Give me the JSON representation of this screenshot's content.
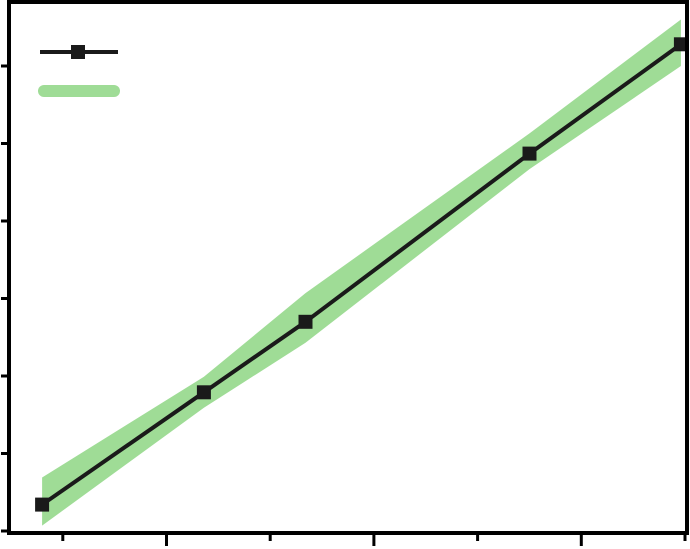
{
  "chart_data": {
    "type": "line",
    "title": "",
    "xlabel": "",
    "ylabel": "",
    "xlim": [
      0,
      6.5
    ],
    "ylim": [
      0,
      6.8
    ],
    "x_ticks": [
      0.5,
      1.5,
      2.5,
      3.5,
      4.5,
      5.5,
      6.5
    ],
    "y_ticks": [
      0,
      1,
      2,
      3,
      4,
      5,
      6
    ],
    "grid": false,
    "legend": "top-left",
    "series": [
      {
        "kind": "line-markers",
        "color": "#1a1a1a",
        "marker": "square",
        "x": [
          0.3,
          1.86,
          2.84,
          5.0,
          6.46
        ],
        "y": [
          0.34,
          1.79,
          2.7,
          4.87,
          6.28
        ]
      },
      {
        "kind": "band",
        "color": "#9fdc96",
        "x": [
          0.3,
          1.86,
          2.84,
          5.0,
          6.46
        ],
        "lower": [
          0.07,
          1.59,
          2.43,
          4.67,
          6.0
        ],
        "upper": [
          0.69,
          1.99,
          3.07,
          5.13,
          6.6
        ]
      }
    ]
  }
}
